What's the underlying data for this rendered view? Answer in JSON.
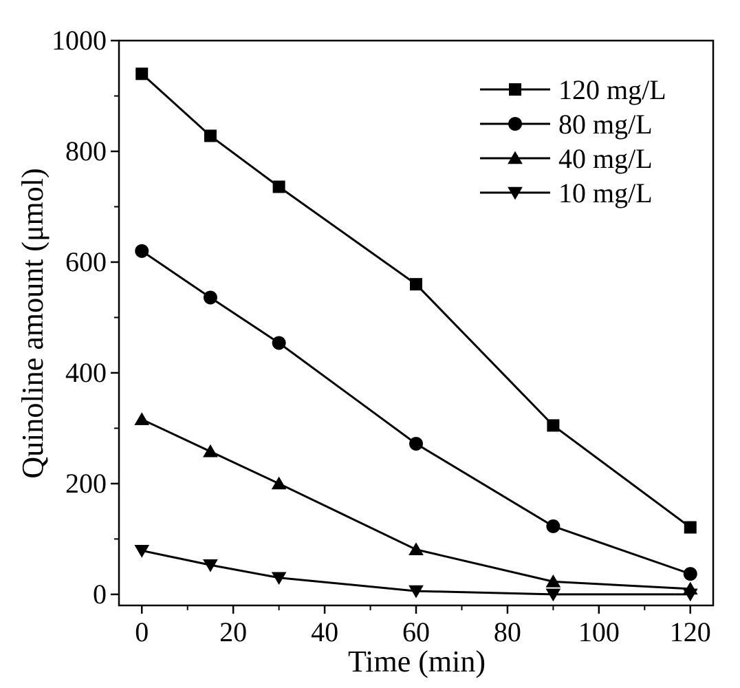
{
  "chart_data": {
    "type": "line",
    "title": "",
    "xlabel": "Time (min)",
    "ylabel": "Quinoline amount (μmol)",
    "xlim": [
      -5,
      125
    ],
    "ylim": [
      -20,
      1000
    ],
    "x_ticks": [
      0,
      20,
      40,
      60,
      80,
      100,
      120
    ],
    "x_tick_labels": [
      "0",
      "20",
      "40",
      "60",
      "80",
      "100",
      "120"
    ],
    "y_ticks": [
      0,
      200,
      400,
      600,
      800,
      1000
    ],
    "y_tick_labels": [
      "0",
      "200",
      "400",
      "600",
      "800",
      "1000"
    ],
    "x_minor_ticks": [
      10,
      30,
      50,
      70,
      90,
      110
    ],
    "y_minor_ticks": [
      100,
      300,
      500,
      700,
      900
    ],
    "grid": false,
    "legend_position": "top-right",
    "x": [
      0,
      15,
      30,
      60,
      90,
      120
    ],
    "series": [
      {
        "name": "120 mg/L",
        "marker": "square",
        "values": [
          940,
          828,
          736,
          560,
          305,
          121
        ]
      },
      {
        "name": "80 mg/L",
        "marker": "circle",
        "values": [
          620,
          536,
          454,
          272,
          123,
          37
        ]
      },
      {
        "name": "40 mg/L",
        "marker": "triangle-up",
        "values": [
          316,
          258,
          200,
          81,
          23,
          10
        ]
      },
      {
        "name": "10 mg/L",
        "marker": "triangle-down",
        "values": [
          79,
          53,
          30,
          6,
          0,
          0
        ]
      }
    ],
    "colors": {
      "line": "#000000",
      "marker": "#000000",
      "background": "#ffffff"
    }
  }
}
